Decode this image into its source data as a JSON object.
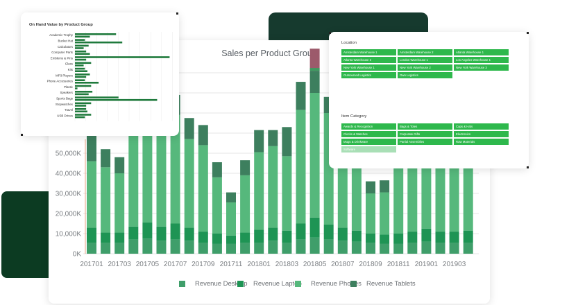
{
  "colors": {
    "desktop": "#3f9e6a",
    "laptop": "#1e9454",
    "phones": "#56b87c",
    "tablets": "#3d7f5e",
    "highlight": "#9c5a6b",
    "highlight_mid": "#3f9a60",
    "slicer": "#2eb84c",
    "slicer_dim": "#a9dfb6"
  },
  "main": {
    "title": "Sales per Product Group",
    "legend": [
      "Revenue Desktop",
      "Revenue Laptop",
      "Revenue Phones",
      "Revenue Tablets"
    ]
  },
  "onhand": {
    "title": "On Hand Value by Product Group"
  },
  "filters": {
    "location_label": "Location",
    "locations": [
      "Amsterdam Warehouse 1",
      "Amsterdam Warehouse 2",
      "Atlanta Warehouse 1",
      "Atlanta Warehouse 2",
      "London Warehouse 1",
      "Los Angeles Warehouse 1",
      "New York Warehouse 1",
      "New York Warehouse 2",
      "New York Warehouse 3",
      "Outsourced Logistics",
      "Own Logistics"
    ],
    "category_label": "Item Category",
    "categories": [
      "Awards & Recognition",
      "Bags & Totes",
      "Caps & Hats",
      "Clocks & Watches",
      "Corporate Gifts",
      "Electronics",
      "Mugs & Drinkware",
      "Partial Assemblies",
      "Raw Materials",
      "Software"
    ]
  },
  "chart_data": [
    {
      "type": "bar",
      "stacked": true,
      "title": "Sales per Product Group",
      "xlabel": "",
      "ylabel": "",
      "ylim": [
        0,
        90000
      ],
      "yticks_visible": [
        "0K",
        "10,000K",
        "20,000K",
        "30,000K",
        "40,000K",
        "50,000K"
      ],
      "categories": [
        "201701",
        "201702",
        "201703",
        "201704",
        "201705",
        "201706",
        "201707",
        "201708",
        "201709",
        "201710",
        "201711",
        "201712",
        "201801",
        "201802",
        "201803",
        "201804",
        "201805",
        "201806",
        "201807",
        "201808",
        "201809",
        "201810",
        "201811",
        "201812",
        "201901",
        "201902",
        "201903",
        "201904"
      ],
      "x_tick_labels": [
        "201701",
        "201703",
        "201705",
        "201707",
        "201709",
        "201711",
        "201801",
        "201803",
        "201805",
        "201807",
        "201809",
        "201811",
        "201901",
        "201903"
      ],
      "legend_position": "bottom",
      "grid": true,
      "series": [
        {
          "name": "Revenue Desktop",
          "values": [
            5500,
            5500,
            5500,
            7000,
            7500,
            6500,
            7000,
            6500,
            5500,
            5000,
            5000,
            5500,
            5500,
            6500,
            5500,
            7000,
            8000,
            7000,
            6500,
            6000,
            5500,
            5000,
            5000,
            5500,
            6000,
            5500,
            5500,
            5500
          ]
        },
        {
          "name": "Revenue Laptop",
          "values": [
            7500,
            5000,
            5000,
            6500,
            8000,
            7000,
            8000,
            6500,
            5500,
            5000,
            4000,
            5000,
            6500,
            6500,
            6000,
            8000,
            10000,
            7500,
            6500,
            5500,
            4500,
            4500,
            5000,
            5500,
            6500,
            5500,
            5500,
            6000
          ]
        },
        {
          "name": "Revenue Phones",
          "values": [
            33000,
            32500,
            29500,
            54000,
            52000,
            52500,
            54000,
            44000,
            43000,
            28000,
            16500,
            28500,
            38500,
            40500,
            37000,
            56500,
            62000,
            55500,
            43500,
            41000,
            20000,
            21000,
            38500,
            39500,
            44500,
            42000,
            42000,
            44000
          ]
        },
        {
          "name": "Revenue Tablets",
          "values": [
            16000,
            9000,
            8000,
            7000,
            8500,
            9000,
            10000,
            10500,
            10000,
            7500,
            5000,
            7500,
            11000,
            8000,
            14500,
            14000,
            11000,
            8000,
            8500,
            7500,
            6000,
            6000,
            8000,
            7500,
            7000,
            8000,
            6500,
            8000
          ]
        }
      ],
      "highlight": {
        "category": "201805",
        "value": 11000
      }
    },
    {
      "type": "bar",
      "orientation": "horizontal",
      "title": "On Hand Value by Product Group",
      "categories": [
        "Academic Trophy",
        "Bucket Hat",
        "Calculators",
        "Computer Parts",
        "Emblems & Pins",
        "Glass",
        "Kits",
        "MP3 Players",
        "Phone Accessories",
        "Plastic",
        "Speakers",
        "Sports Bags",
        "Stopwatches",
        "Travel",
        "USB Drives"
      ],
      "values": [
        [
          3300000,
          1200000
        ],
        [
          800000,
          3800000
        ],
        [
          1100000,
          700000
        ],
        [
          900000,
          1200000
        ],
        [
          7600000,
          900000
        ],
        [
          1300000,
          700000
        ],
        [
          800000,
          1000000
        ],
        [
          1200000,
          900000
        ],
        [
          800000,
          1900000
        ],
        [
          1300000,
          200000
        ],
        [
          1400000,
          1100000
        ],
        [
          3500000,
          6600000
        ],
        [
          1300000,
          900000
        ],
        [
          900000,
          1000000
        ],
        [
          1300000,
          800000
        ]
      ],
      "xlim": [
        0,
        7800000
      ]
    }
  ]
}
